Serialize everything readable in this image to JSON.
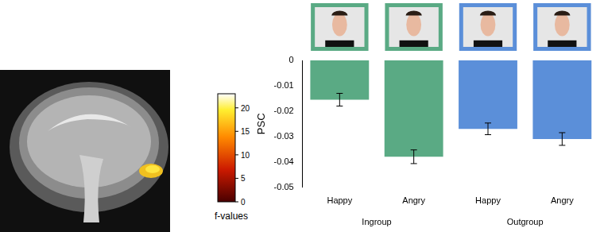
{
  "chart_data": {
    "type": "bar",
    "y_label": "PSC",
    "categories": [
      "Happy",
      "Angry",
      "Happy",
      "Angry"
    ],
    "group_labels": [
      "Ingroup",
      "Outgroup"
    ],
    "values": [
      -0.0155,
      -0.038,
      -0.027,
      -0.031
    ],
    "errors": [
      0.0025,
      0.0027,
      0.0023,
      0.0025
    ],
    "colors": [
      "#5aaa84",
      "#5aaa84",
      "#5b8fd9",
      "#5b8fd9"
    ],
    "ylim": [
      -0.05,
      0
    ],
    "yticks": [
      -0.05,
      -0.04,
      -0.03,
      -0.02,
      -0.01,
      0
    ],
    "grid": false
  },
  "brain_map": {
    "colorbar_label": "f-values",
    "colorbar_range": [
      0,
      23
    ],
    "colorbar_ticks": [
      0,
      5,
      10,
      15,
      20
    ]
  }
}
